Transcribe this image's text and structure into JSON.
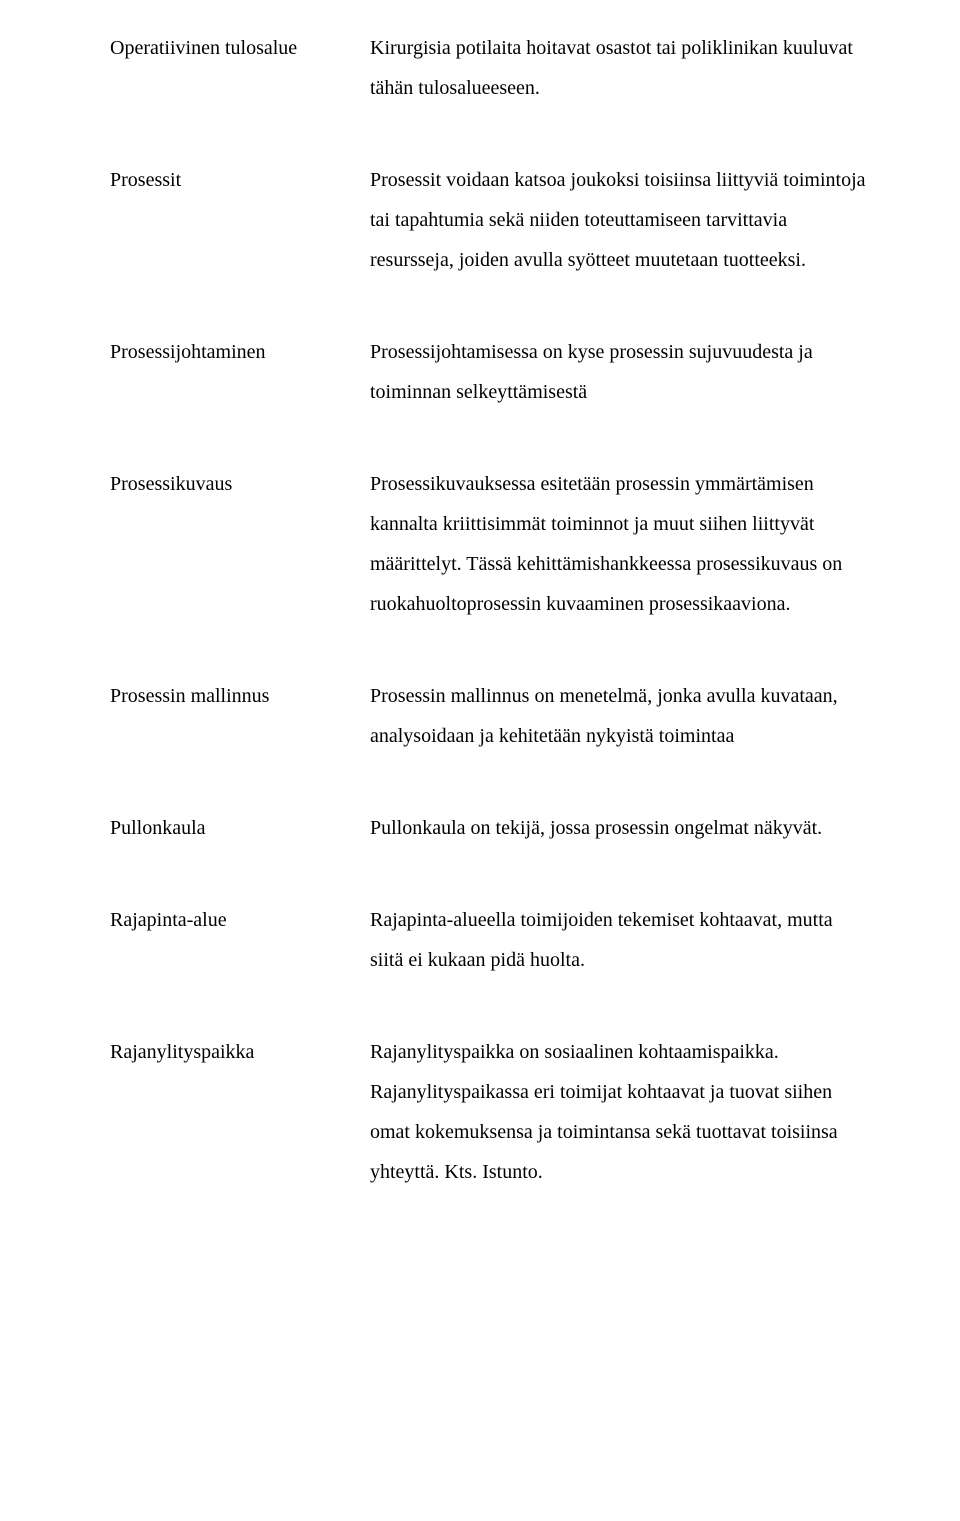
{
  "entries": [
    {
      "term": "Operatiivinen tulosalue",
      "definition": "Kirurgisia potilaita hoitavat osastot tai poliklinikan kuuluvat tähän tulosalueeseen."
    },
    {
      "term": "Prosessit",
      "definition": "Prosessit voidaan katsoa joukoksi toisiinsa liittyviä toimintoja tai tapahtumia sekä niiden toteuttamiseen tarvittavia resursseja, joiden avulla syötteet muutetaan tuotteeksi."
    },
    {
      "term": "Prosessijohtaminen",
      "definition": "Prosessijohtamisessa on kyse prosessin sujuvuudesta ja toiminnan selkeyttämisestä"
    },
    {
      "term": "Prosessikuvaus",
      "definition": "Prosessikuvauksessa esitetään prosessin ymmärtämisen kannalta kriittisimmät toiminnot ja muut siihen liittyvät määrittelyt. Tässä kehittämishankkeessa prosessikuvaus on ruokahuoltoprosessin kuvaaminen prosessikaaviona."
    },
    {
      "term": "Prosessin mallinnus",
      "definition": "Prosessin mallinnus on menetelmä, jonka avulla kuvataan, analysoidaan ja kehitetään nykyistä toimintaa"
    },
    {
      "term": "Pullonkaula",
      "definition": "Pullonkaula on tekijä, jossa prosessin ongelmat näkyvät."
    },
    {
      "term": "Rajapinta-alue",
      "definition": "Rajapinta-alueella toimijoiden tekemiset kohtaavat, mutta siitä ei kukaan pidä huolta."
    },
    {
      "term": "Rajanylityspaikka",
      "definition": "Rajanylityspaikka on sosiaalinen kohtaamispaikka. Rajanylityspaikassa eri toimijat kohtaavat ja tuovat siihen omat kokemuksensa ja toimintansa sekä tuottavat toisiinsa yhteyttä. Kts. Istunto."
    }
  ]
}
